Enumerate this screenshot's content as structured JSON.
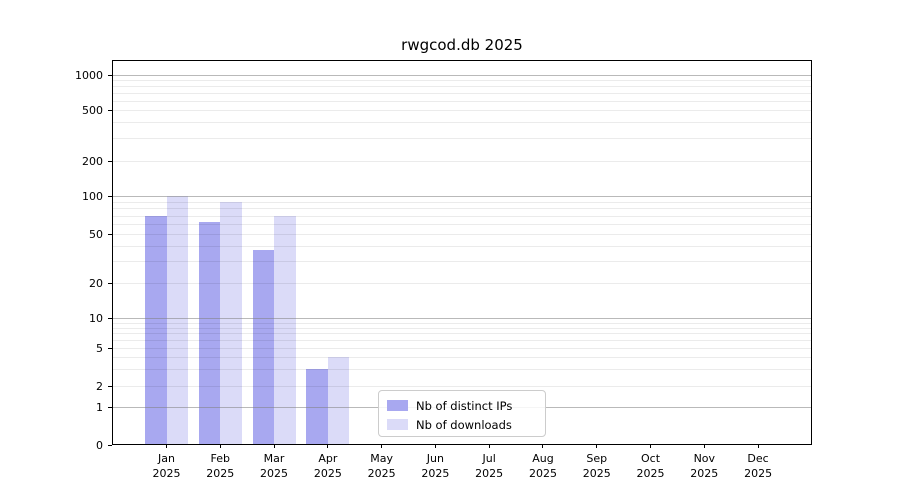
{
  "title": "rwgcod.db 2025",
  "chart_data": {
    "type": "bar",
    "title": "rwgcod.db 2025",
    "categories": [
      "Jan",
      "Feb",
      "Mar",
      "Apr",
      "May",
      "Jun",
      "Jul",
      "Aug",
      "Sep",
      "Oct",
      "Nov",
      "Dec"
    ],
    "year_label": "2025",
    "series": [
      {
        "name": "Nb of distinct IPs",
        "color": "#a8a8f0",
        "values": [
          70,
          62,
          37,
          3,
          0,
          0,
          0,
          0,
          0,
          0,
          0,
          0
        ]
      },
      {
        "name": "Nb of downloads",
        "color": "#dbdbf8",
        "values": [
          100,
          90,
          70,
          4,
          0,
          0,
          0,
          0,
          0,
          0,
          0,
          0
        ]
      }
    ],
    "y_tick_values": [
      0,
      1,
      2,
      5,
      10,
      20,
      50,
      100,
      200,
      500,
      1000
    ],
    "yscale": "log-with-zero",
    "ylim": [
      0,
      1000
    ],
    "grid": true,
    "legend": {
      "position": "lower-center",
      "labels": [
        "Nb of distinct IPs",
        "Nb of downloads"
      ]
    }
  },
  "colors": {
    "bar_ips": "#a8a8f0",
    "bar_downloads": "#dbdbf8",
    "grid_major": "rgba(128,128,128,0.55)",
    "grid_minor": "rgba(0,0,0,0.08)",
    "axis": "#000000",
    "background": "#ffffff",
    "legend_border": "#cccccc"
  }
}
